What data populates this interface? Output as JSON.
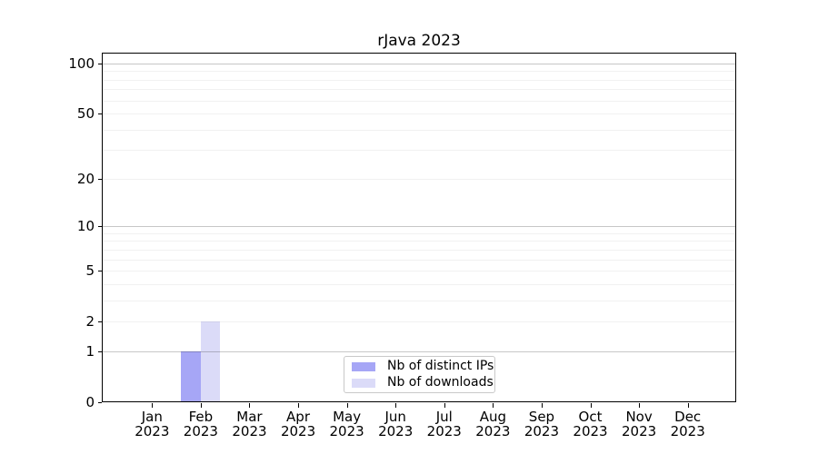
{
  "chart_data": {
    "type": "bar",
    "title": "rJava 2023",
    "categories": [
      "Jan 2023",
      "Feb 2023",
      "Mar 2023",
      "Apr 2023",
      "May 2023",
      "Jun 2023",
      "Jul 2023",
      "Aug 2023",
      "Sep 2023",
      "Oct 2023",
      "Nov 2023",
      "Dec 2023"
    ],
    "series": [
      {
        "name": "Nb of distinct IPs",
        "color": "#a6a6f6",
        "values": [
          0,
          1,
          0,
          0,
          0,
          0,
          0,
          0,
          0,
          0,
          0,
          0
        ]
      },
      {
        "name": "Nb of downloads",
        "color": "#dbdbf8",
        "values": [
          0,
          2,
          0,
          0,
          0,
          0,
          0,
          0,
          0,
          0,
          0,
          0
        ]
      }
    ],
    "yscale": "log1p",
    "ylim": [
      0,
      116
    ],
    "y_ticks": [
      0,
      1,
      2,
      5,
      10,
      20,
      50,
      100
    ],
    "y_gridlines_major": [
      1,
      10,
      100
    ],
    "y_gridlines_minor": [
      2,
      3,
      4,
      5,
      6,
      7,
      8,
      9,
      20,
      30,
      40,
      50,
      60,
      70,
      80,
      90
    ],
    "grid": true,
    "legend_position": "lower center"
  },
  "colors": {
    "background": "#ffffff",
    "axis": "#000000",
    "grid_major": "#c9c9c9",
    "grid_minor": "#f1f1f1",
    "legend_border": "#c9c9c9"
  }
}
